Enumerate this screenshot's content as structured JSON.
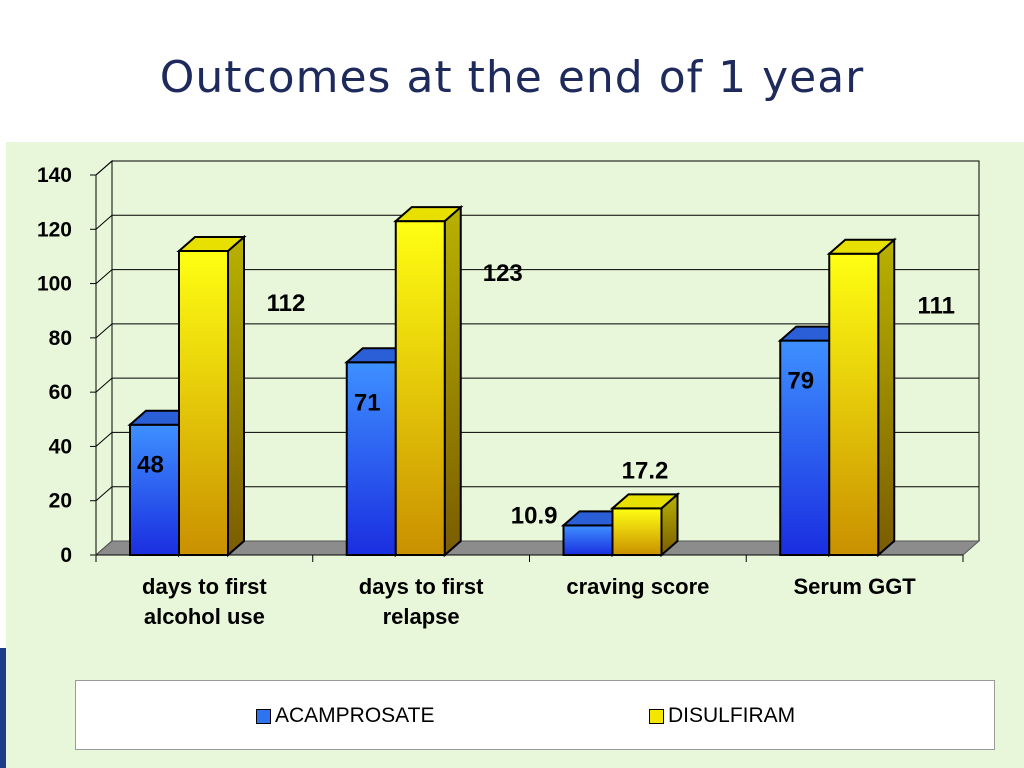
{
  "title": "Outcomes at the end of 1 year",
  "colors": {
    "title": "#1f2a5c",
    "panel": "#e8f7da",
    "acamprosate": "#2f73ee",
    "disulfiram": "#f5e600",
    "floor": "#8c8c8c"
  },
  "legend": {
    "items": [
      {
        "label": "ACAMPROSATE",
        "color": "#2f73ee"
      },
      {
        "label": "DISULFIRAM",
        "color": "#f5e600"
      }
    ]
  },
  "chart_data": {
    "type": "bar",
    "style": "3d-clustered",
    "title": "",
    "xlabel": "",
    "ylabel": "",
    "ylim": [
      0,
      140
    ],
    "yticks": [
      "0",
      "20",
      "40",
      "60",
      "80",
      "100",
      "120",
      "140"
    ],
    "grid": true,
    "legend_position": "bottom",
    "categories": [
      [
        "days to first",
        "alcohol use"
      ],
      [
        "days to first",
        "relapse"
      ],
      [
        "craving score"
      ],
      [
        "Serum GGT"
      ]
    ],
    "series": [
      {
        "name": "ACAMPROSATE",
        "values": [
          48,
          71,
          10.9,
          79
        ],
        "labels": [
          "48",
          "71",
          "10.9",
          "79"
        ]
      },
      {
        "name": "DISULFIRAM",
        "values": [
          112,
          123,
          17.2,
          111
        ],
        "labels": [
          "112",
          "123",
          "17.2",
          "111"
        ]
      }
    ]
  }
}
